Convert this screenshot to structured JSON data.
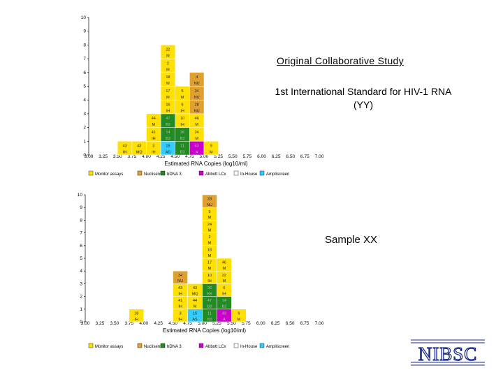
{
  "chart_data": [
    {
      "type": "bar",
      "title": "Original Collaborative Study",
      "subtitle": "1st International Standard for HIV-1 RNA (YY)",
      "xlabel": "Estimated RNA Copies (log10/ml)",
      "ylabel": "",
      "xlim": [
        3.0,
        7.0
      ],
      "ylim": [
        0,
        10
      ],
      "x_ticks": [
        "3.00",
        "3.25",
        "3.50",
        "3.75",
        "4.00",
        "4.25",
        "4.50",
        "4.75",
        "5.00",
        "5.25",
        "5.50",
        "5.75",
        "6.00",
        "6.25",
        "6.50",
        "6.75",
        "7.00"
      ],
      "y_ticks": [
        "0",
        "1",
        "2",
        "3",
        "4",
        "5",
        "6",
        "7",
        "8",
        "9",
        "10"
      ],
      "stacks": [
        {
          "x": 3.75,
          "cells": [
            {
              "lab": "43",
              "assay": "IH",
              "color": "#ffe000"
            }
          ]
        },
        {
          "x": 4.0,
          "cells": [
            {
              "lab": "43",
              "assay": "MQ",
              "color": "#ffe000"
            }
          ]
        },
        {
          "x": 4.25,
          "cells": [
            {
              "lab": "3",
              "assay": "IH",
              "color": "#ffe000"
            },
            {
              "lab": "41",
              "assay": "IH",
              "color": "#ffe000"
            },
            {
              "lab": "44",
              "assay": "M",
              "color": "#ffe000"
            }
          ]
        },
        {
          "x": 4.5,
          "cells": [
            {
              "lab": "19",
              "assay": "AS",
              "color": "#33ccff"
            },
            {
              "lab": "14",
              "assay": "B3",
              "color": "#228b22"
            },
            {
              "lab": "47",
              "assay": "B3",
              "color": "#228b22"
            },
            {
              "lab": "16",
              "assay": "IH",
              "color": "#ffe000"
            },
            {
              "lab": "17",
              "assay": "M",
              "color": "#ffe000"
            },
            {
              "lab": "18",
              "assay": "M",
              "color": "#ffe000"
            },
            {
              "lab": "2",
              "assay": "M",
              "color": "#ffe000"
            },
            {
              "lab": "22",
              "assay": "M",
              "color": "#ffe000"
            }
          ]
        },
        {
          "x": 4.75,
          "cells": [
            {
              "lab": "11",
              "assay": "B3",
              "color": "#228b22"
            },
            {
              "lab": "36",
              "assay": "B3",
              "color": "#228b22"
            },
            {
              "lab": "10",
              "assay": "IH",
              "color": "#ffe000"
            },
            {
              "lab": "6",
              "assay": "IH",
              "color": "#ffe000"
            },
            {
              "lab": "5",
              "assay": "M",
              "color": "#ffe000"
            }
          ]
        },
        {
          "x": 5.0,
          "cells": [
            {
              "lab": "43",
              "assay": "A",
              "color": "#cc00cc"
            },
            {
              "lab": "24",
              "assay": "M",
              "color": "#ffe000"
            },
            {
              "lab": "46",
              "assay": "M",
              "color": "#ffe000"
            },
            {
              "lab": "28",
              "assay": "NU",
              "color": "#e0a030"
            },
            {
              "lab": "34",
              "assay": "NU",
              "color": "#e0a030"
            },
            {
              "lab": "4",
              "assay": "NU",
              "color": "#e0a030"
            }
          ]
        },
        {
          "x": 5.25,
          "cells": [
            {
              "lab": "9",
              "assay": "M",
              "color": "#ffe000"
            }
          ]
        }
      ],
      "legend": [
        "Monitor assays",
        "Nuclisens",
        "bDNA 3",
        "Abbott LCx",
        "In-House",
        "Amplíscreen"
      ],
      "legend_colors": [
        "#ffe000",
        "#e0a030",
        "#228b22",
        "#cc00cc",
        "#ffffff",
        "#33ccff"
      ],
      "legend_position": "bottom"
    },
    {
      "type": "bar",
      "title": "Sample XX",
      "xlabel": "Estimated RNA Copies (log10/ml)",
      "ylabel": "",
      "xlim": [
        3.0,
        7.0
      ],
      "ylim": [
        0,
        10
      ],
      "x_ticks": [
        "3.00",
        "3.25",
        "3.50",
        "3.75",
        "4.00",
        "4.25",
        "4.50",
        "4.75",
        "5.00",
        "5.25",
        "5.50",
        "5.75",
        "6.00",
        "6.25",
        "6.50",
        "6.75",
        "7.00"
      ],
      "y_ticks": [
        "0",
        "1",
        "2",
        "3",
        "4",
        "5",
        "6",
        "7",
        "8",
        "9",
        "10"
      ],
      "stacks": [
        {
          "x": 4.0,
          "cells": [
            {
              "lab": "18",
              "assay": "IH",
              "color": "#ffe000"
            }
          ]
        },
        {
          "x": 4.75,
          "cells": [
            {
              "lab": "3",
              "assay": "IH",
              "color": "#ffe000"
            },
            {
              "lab": "41",
              "assay": "IH",
              "color": "#ffe000"
            },
            {
              "lab": "43",
              "assay": "IH",
              "color": "#ffe000"
            },
            {
              "lab": "34",
              "assay": "NU",
              "color": "#e0a030"
            }
          ]
        },
        {
          "x": 5.0,
          "cells": [
            {
              "lab": "19",
              "assay": "AS",
              "color": "#33ccff"
            },
            {
              "lab": "44",
              "assay": "M",
              "color": "#ffe000"
            },
            {
              "lab": "43",
              "assay": "MQ",
              "color": "#ffe000"
            }
          ]
        },
        {
          "x": 5.25,
          "cells": [
            {
              "lab": "11",
              "assay": "B3",
              "color": "#228b22"
            },
            {
              "lab": "47",
              "assay": "B3",
              "color": "#228b22"
            },
            {
              "lab": "36",
              "assay": "B3",
              "color": "#228b22"
            },
            {
              "lab": "10",
              "assay": "IH",
              "color": "#ffe000"
            },
            {
              "lab": "17",
              "assay": "M",
              "color": "#ffe000"
            },
            {
              "lab": "18",
              "assay": "M",
              "color": "#ffe000"
            },
            {
              "lab": "2",
              "assay": "M",
              "color": "#ffe000"
            },
            {
              "lab": "24",
              "assay": "M",
              "color": "#ffe000"
            },
            {
              "lab": "5",
              "assay": "M",
              "color": "#ffe000"
            },
            {
              "lab": "28",
              "assay": "NU",
              "color": "#e0a030"
            }
          ]
        },
        {
          "x": 5.5,
          "cells": [
            {
              "lab": "43",
              "assay": "A",
              "color": "#cc00cc"
            },
            {
              "lab": "14",
              "assay": "B3",
              "color": "#228b22"
            },
            {
              "lab": "6",
              "assay": "IH",
              "color": "#ffe000"
            },
            {
              "lab": "22",
              "assay": "M",
              "color": "#ffe000"
            },
            {
              "lab": "46",
              "assay": "M",
              "color": "#ffe000"
            }
          ]
        },
        {
          "x": 5.75,
          "cells": [
            {
              "lab": "9",
              "assay": "M",
              "color": "#ffe000"
            }
          ]
        }
      ],
      "legend": [
        "Monitor assays",
        "Nuclisens",
        "bDNA 3",
        "Abbott LCx",
        "In-House",
        "Amplíscreen"
      ],
      "legend_colors": [
        "#ffe000",
        "#e0a030",
        "#228b22",
        "#cc00cc",
        "#ffffff",
        "#33ccff"
      ],
      "legend_position": "bottom"
    }
  ],
  "logo_text": "NIBSC"
}
